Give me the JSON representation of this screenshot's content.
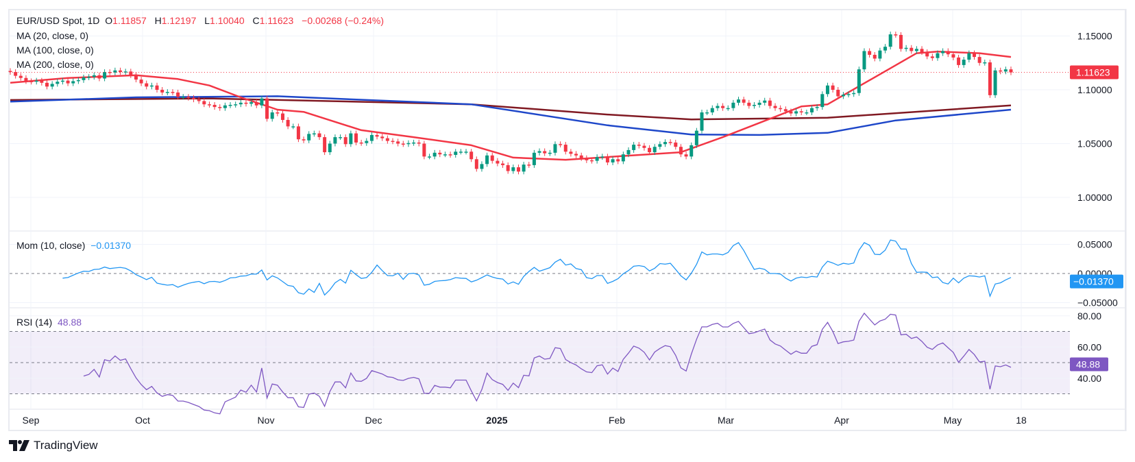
{
  "header": {
    "symbol": "EUR/USD Spot, 1D",
    "open_label": "O",
    "open": "1.11857",
    "high_label": "H",
    "high": "1.12197",
    "low_label": "L",
    "low": "1.10040",
    "close_label": "C",
    "close": "1.11623",
    "change": "−0.00268 (−0.24%)"
  },
  "indicators": {
    "ma20": "MA (20, close, 0)",
    "ma100": "MA (100, close, 0)",
    "ma200": "MA (200, close, 0)",
    "mom": "Mom (10, close)",
    "mom_value": "−0.01370",
    "rsi": "RSI (14)",
    "rsi_value": "48.88"
  },
  "logo": "TradingView",
  "colors": {
    "up": "#089981",
    "down": "#f23645",
    "ma20": "#f23645",
    "ma100": "#1e47c9",
    "ma200": "#801922",
    "mom": "#2196f3",
    "rsi": "#7e57c2"
  },
  "chart_data": [
    {
      "type": "candlestick",
      "title": "EUR/USD Spot, 1D",
      "price_axis_ticks": [
        "1.15000",
        "1.10000",
        "1.05000",
        "1.00000"
      ],
      "ylim": [
        0.98,
        1.165
      ],
      "last_price_label": "1.11623",
      "last_price": 1.11623,
      "time_axis_ticks": [
        "Sep",
        "Oct",
        "Nov",
        "Dec",
        "2025",
        "Feb",
        "Mar",
        "Apr",
        "May",
        "18"
      ],
      "grid": true,
      "close": [
        1.1165,
        1.113,
        1.111,
        1.108,
        1.1075,
        1.1085,
        1.1065,
        1.103,
        1.1055,
        1.1075,
        1.1085,
        1.106,
        1.108,
        1.109,
        1.1115,
        1.112,
        1.1135,
        1.1105,
        1.1165,
        1.116,
        1.118,
        1.1165,
        1.117,
        1.1135,
        1.1095,
        1.106,
        1.103,
        1.104,
        1.1,
        1.0975,
        1.098,
        1.0975,
        1.0935,
        1.0935,
        1.0925,
        1.091,
        1.0895,
        1.0865,
        1.086,
        1.084,
        1.083,
        1.0855,
        1.086,
        1.0865,
        1.088,
        1.087,
        1.0885,
        1.0855,
        1.092,
        1.073,
        1.079,
        1.078,
        1.072,
        1.066,
        1.066,
        1.054,
        1.053,
        1.059,
        1.0595,
        1.056,
        1.042,
        1.05,
        1.056,
        1.056,
        1.0495,
        1.0595,
        1.051,
        1.0505,
        1.0525,
        1.058,
        1.0565,
        1.055,
        1.0525,
        1.052,
        1.05,
        1.0495,
        1.0505,
        1.051,
        1.05,
        1.038,
        1.038,
        1.0415,
        1.04,
        1.04,
        1.0395,
        1.0425,
        1.0425,
        1.0425,
        1.0355,
        1.0265,
        1.031,
        1.039,
        1.034,
        1.0315,
        1.03,
        1.0245,
        1.028,
        1.024,
        1.0305,
        1.03,
        1.0415,
        1.043,
        1.041,
        1.0415,
        1.0495,
        1.049,
        1.0425,
        1.0405,
        1.039,
        1.0365,
        1.0345,
        1.034,
        1.0375,
        1.038,
        1.0325,
        1.0355,
        1.0335,
        1.04,
        1.044,
        1.049,
        1.048,
        1.046,
        1.042,
        1.047,
        1.0495,
        1.0515,
        1.051,
        1.047,
        1.04,
        1.038,
        1.0485,
        1.062,
        1.079,
        1.079,
        1.083,
        1.085,
        1.083,
        1.083,
        1.088,
        1.091,
        1.088,
        1.085,
        1.086,
        1.088,
        1.09,
        1.085,
        1.083,
        1.082,
        1.08,
        1.078,
        1.08,
        1.079,
        1.079,
        1.083,
        1.084,
        1.096,
        1.104,
        1.1,
        1.094,
        1.0955,
        1.096,
        1.097,
        1.119,
        1.136,
        1.1325,
        1.129,
        1.1365,
        1.14,
        1.1515,
        1.151,
        1.138,
        1.139,
        1.136,
        1.138,
        1.135,
        1.131,
        1.1295,
        1.134,
        1.136,
        1.133,
        1.13,
        1.123,
        1.128,
        1.134,
        1.1305,
        1.125,
        1.1255,
        1.095,
        1.118,
        1.117,
        1.119,
        1.1162
      ],
      "moving_averages": {
        "ma20": {
          "bar": [
            0,
            11,
            24,
            32,
            38,
            44,
            51,
            56,
            67,
            77,
            88,
            96,
            106,
            114,
            128,
            136,
            146,
            151,
            156,
            161,
            168,
            173,
            177,
            185,
            191
          ],
          "value": [
            1.1065,
            1.111,
            1.1135,
            1.11,
            1.104,
            1.093,
            1.0815,
            1.0795,
            1.0625,
            1.056,
            1.0485,
            1.037,
            1.035,
            1.0375,
            1.042,
            1.056,
            1.075,
            1.0845,
            1.0865,
            1.1005,
            1.12,
            1.134,
            1.1355,
            1.134,
            1.1305
          ]
        },
        "ma100": {
          "bar": [
            0,
            24,
            51,
            88,
            114,
            130,
            143,
            156,
            169,
            191
          ],
          "value": [
            1.089,
            1.093,
            1.094,
            1.0865,
            1.067,
            1.0585,
            1.058,
            1.06,
            1.0715,
            1.0815
          ]
        },
        "ma200": {
          "bar": [
            0,
            38,
            88,
            114,
            130,
            156,
            191
          ],
          "value": [
            1.0905,
            1.092,
            1.0865,
            1.077,
            1.0725,
            1.074,
            1.0855
          ]
        }
      }
    },
    {
      "type": "line",
      "title": "Mom (10, close)",
      "ticks": [
        "0.05000",
        "0.00000",
        "−0.05000"
      ],
      "ylim": [
        -0.06,
        0.07
      ],
      "zero_line": 0
    },
    {
      "type": "line",
      "title": "RSI (14)",
      "ticks": [
        "80.00",
        "60.00",
        "40.00"
      ],
      "bands": [
        70,
        50,
        30
      ],
      "ylim": [
        25,
        85
      ]
    }
  ]
}
